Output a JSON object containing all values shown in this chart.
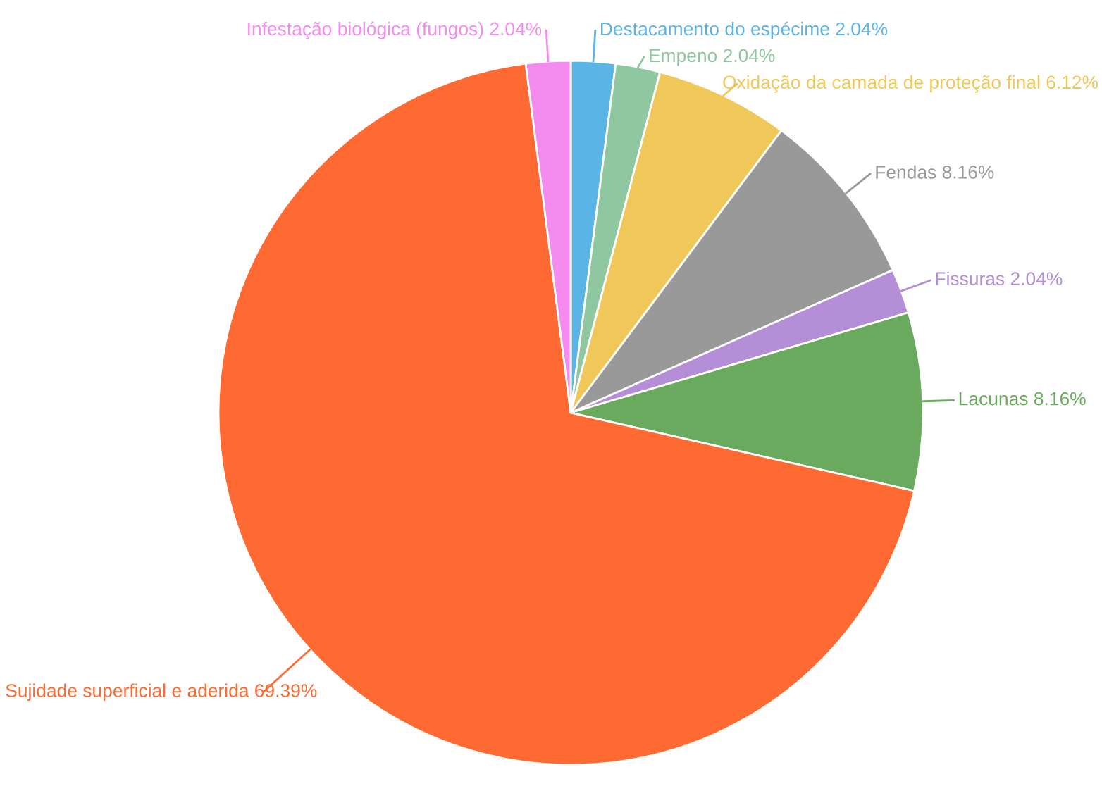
{
  "chart_data": {
    "type": "pie",
    "categories": [
      "Destacamento do espécime",
      "Empeno",
      "Oxidação da camada de proteção final",
      "Fendas",
      "Fissuras",
      "Lacunas",
      "Sujidade superficial e aderida",
      "Infestação biológica (fungos)"
    ],
    "values": [
      2.04,
      2.04,
      6.12,
      8.16,
      2.04,
      8.16,
      69.39,
      2.04
    ],
    "value_labels": [
      "2.04%",
      "2.04%",
      "6.12%",
      "8.16%",
      "2.04%",
      "8.16%",
      "69.39%",
      "2.04%"
    ],
    "colors": [
      "#5ab4e5",
      "#8fc8a0",
      "#f0c85a",
      "#999999",
      "#b48fd8",
      "#6aaa5e",
      "#ff6a33",
      "#f48cf0"
    ],
    "legend": false
  }
}
